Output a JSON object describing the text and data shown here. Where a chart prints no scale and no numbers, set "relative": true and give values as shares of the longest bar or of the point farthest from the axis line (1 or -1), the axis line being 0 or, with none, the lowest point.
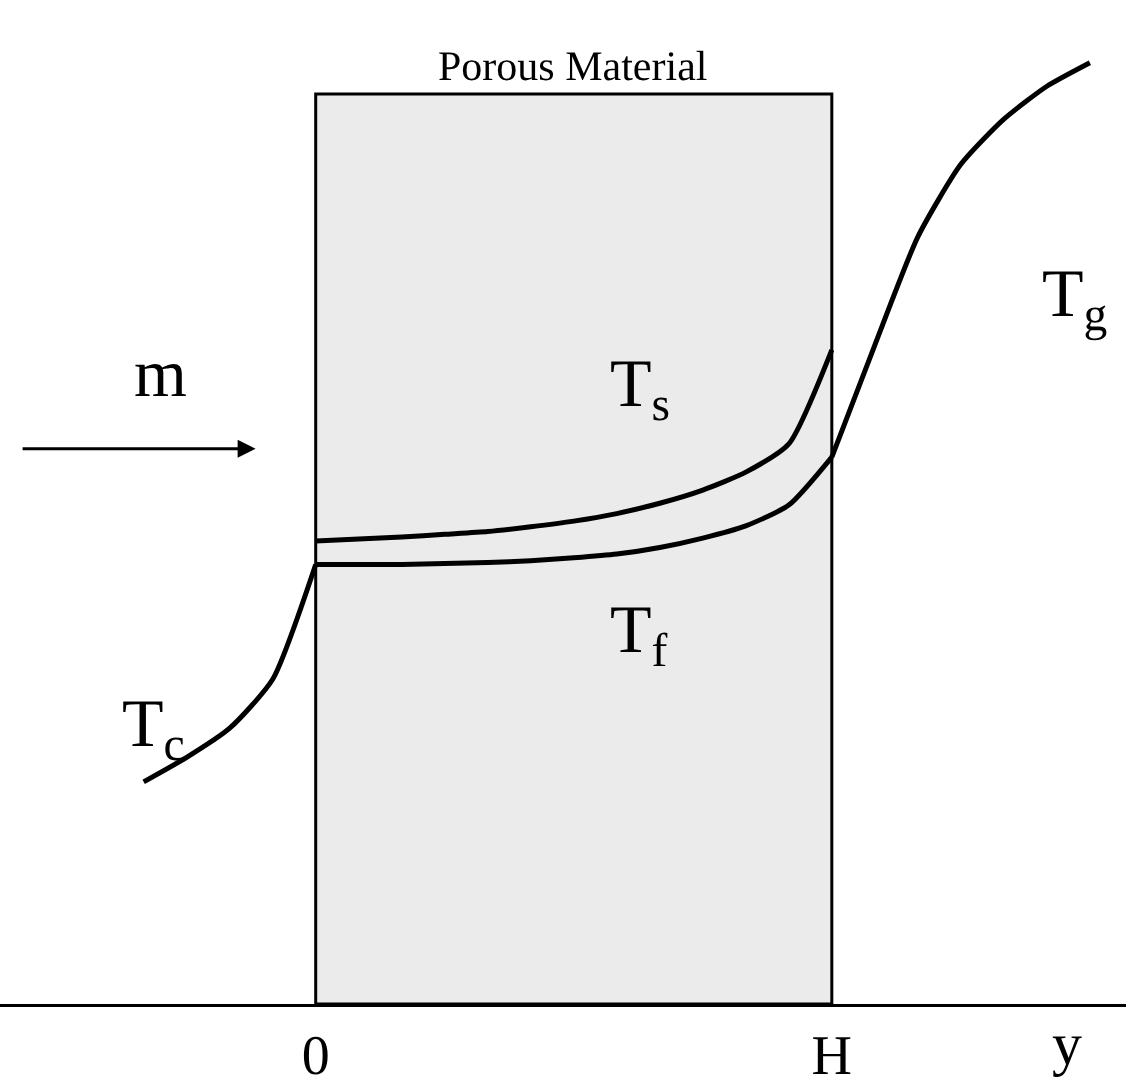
{
  "chart_data": {
    "type": "line",
    "relative": true,
    "legend": false,
    "grid": false,
    "xlabel": "y",
    "categories": [
      null,
      null,
      null,
      null,
      "0",
      null,
      null,
      null,
      null,
      null,
      null,
      null,
      null,
      null,
      null,
      null,
      "H",
      null,
      null,
      null,
      null,
      null,
      null
    ],
    "tick_labels": "x",
    "series": [
      {
        "name": "T$_{c}$",
        "color": "#000000",
        "values": [
          0.236,
          0.262,
          0.293,
          0.345,
          0.467,
          null,
          null,
          null,
          null,
          null,
          null,
          null,
          null,
          null,
          null,
          null,
          null,
          null,
          null,
          null,
          null,
          null,
          null
        ]
      },
      {
        "name": "T$_{s}$",
        "color": "#000000",
        "values": [
          null,
          null,
          null,
          null,
          0.492,
          0.494,
          0.496,
          0.499,
          0.502,
          0.507,
          0.513,
          0.521,
          0.532,
          0.546,
          0.565,
          0.595,
          0.695,
          null,
          null,
          null,
          null,
          null,
          null
        ]
      },
      {
        "name": "T$_{f}$",
        "color": "#000000",
        "values": [
          null,
          null,
          null,
          null,
          0.467,
          0.467,
          0.467,
          0.468,
          0.469,
          0.471,
          0.474,
          0.478,
          0.485,
          0.495,
          0.508,
          0.53,
          0.581,
          null,
          null,
          null,
          null,
          null,
          null
        ]
      },
      {
        "name": "T$_{g}$",
        "color": "#000000",
        "values": [
          null,
          null,
          null,
          null,
          null,
          null,
          null,
          null,
          null,
          null,
          null,
          null,
          null,
          null,
          null,
          null,
          0.581,
          0.7,
          0.815,
          0.892,
          0.94,
          0.975,
          1.0
        ]
      }
    ],
    "bands": [
      {
        "axis": "x",
        "from": "0",
        "to": "H",
        "label": "Porous Material",
        "color": "#ebebeb"
      }
    ],
    "annotations": [
      "m"
    ]
  }
}
